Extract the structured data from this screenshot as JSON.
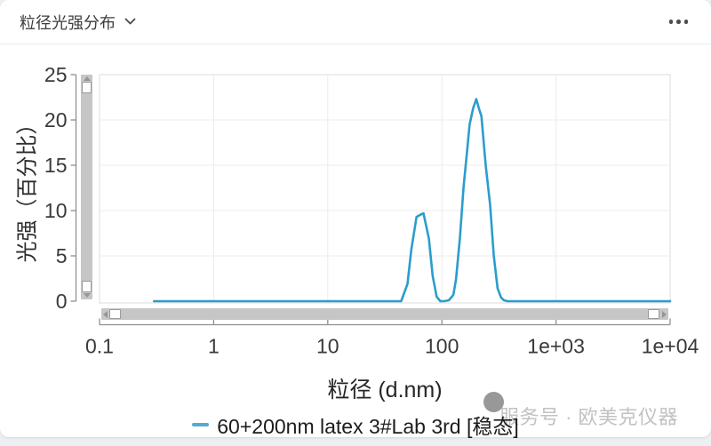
{
  "header": {
    "title": "粒径光强分布"
  },
  "watermark": {
    "text": "服务号 · 欧美克仪器"
  },
  "chart_data": {
    "type": "line",
    "xlabel": "粒径 (d.nm)",
    "ylabel": "光强（百分比）",
    "x_scale": "log",
    "x_range": [
      0.1,
      10000
    ],
    "ylim": [
      0,
      25
    ],
    "grid": true,
    "legend_position": "bottom",
    "line_color": "#2b9dcc",
    "legend_swatch_color": "#55aad6",
    "x_ticks": {
      "values": [
        0.1,
        1,
        10,
        100,
        1000,
        10000
      ],
      "labels": [
        "0.1",
        "1",
        "10",
        "100",
        "1e+03",
        "1e+04"
      ]
    },
    "y_ticks": {
      "values": [
        0,
        5,
        10,
        15,
        20,
        25
      ],
      "labels": [
        "0",
        "5",
        "10",
        "15",
        "20",
        "25"
      ]
    },
    "x_gridlines": [
      1,
      10,
      100,
      1000
    ],
    "y_gridlines": [
      5,
      10,
      15,
      20
    ],
    "series": [
      {
        "name": "60+200nm latex 3#Lab 3rd [稳态]",
        "points": [
          [
            0.3,
            0
          ],
          [
            0.5,
            0
          ],
          [
            1,
            0
          ],
          [
            2,
            0
          ],
          [
            4,
            0
          ],
          [
            8,
            0
          ],
          [
            15,
            0
          ],
          [
            25,
            0
          ],
          [
            35,
            0
          ],
          [
            40,
            0
          ],
          [
            44,
            0
          ],
          [
            50,
            1.9
          ],
          [
            54,
            5.7
          ],
          [
            60,
            9.3
          ],
          [
            64,
            9.5
          ],
          [
            69,
            9.7
          ],
          [
            77,
            6.9
          ],
          [
            83,
            2.8
          ],
          [
            90,
            0.5
          ],
          [
            97,
            0
          ],
          [
            104,
            0
          ],
          [
            115,
            0.1
          ],
          [
            126,
            0.7
          ],
          [
            133,
            2.4
          ],
          [
            144,
            7.0
          ],
          [
            155,
            12.6
          ],
          [
            166,
            16.5
          ],
          [
            175,
            19.5
          ],
          [
            188,
            21.3
          ],
          [
            200,
            22.3
          ],
          [
            212,
            21.2
          ],
          [
            222,
            20.4
          ],
          [
            242,
            15.0
          ],
          [
            265,
            10.6
          ],
          [
            285,
            5.0
          ],
          [
            308,
            1.4
          ],
          [
            330,
            0.4
          ],
          [
            350,
            0.1
          ],
          [
            375,
            0
          ],
          [
            500,
            0
          ],
          [
            800,
            0
          ],
          [
            1500,
            0
          ],
          [
            3000,
            0
          ],
          [
            6000,
            0
          ],
          [
            10000,
            0
          ]
        ]
      }
    ]
  }
}
